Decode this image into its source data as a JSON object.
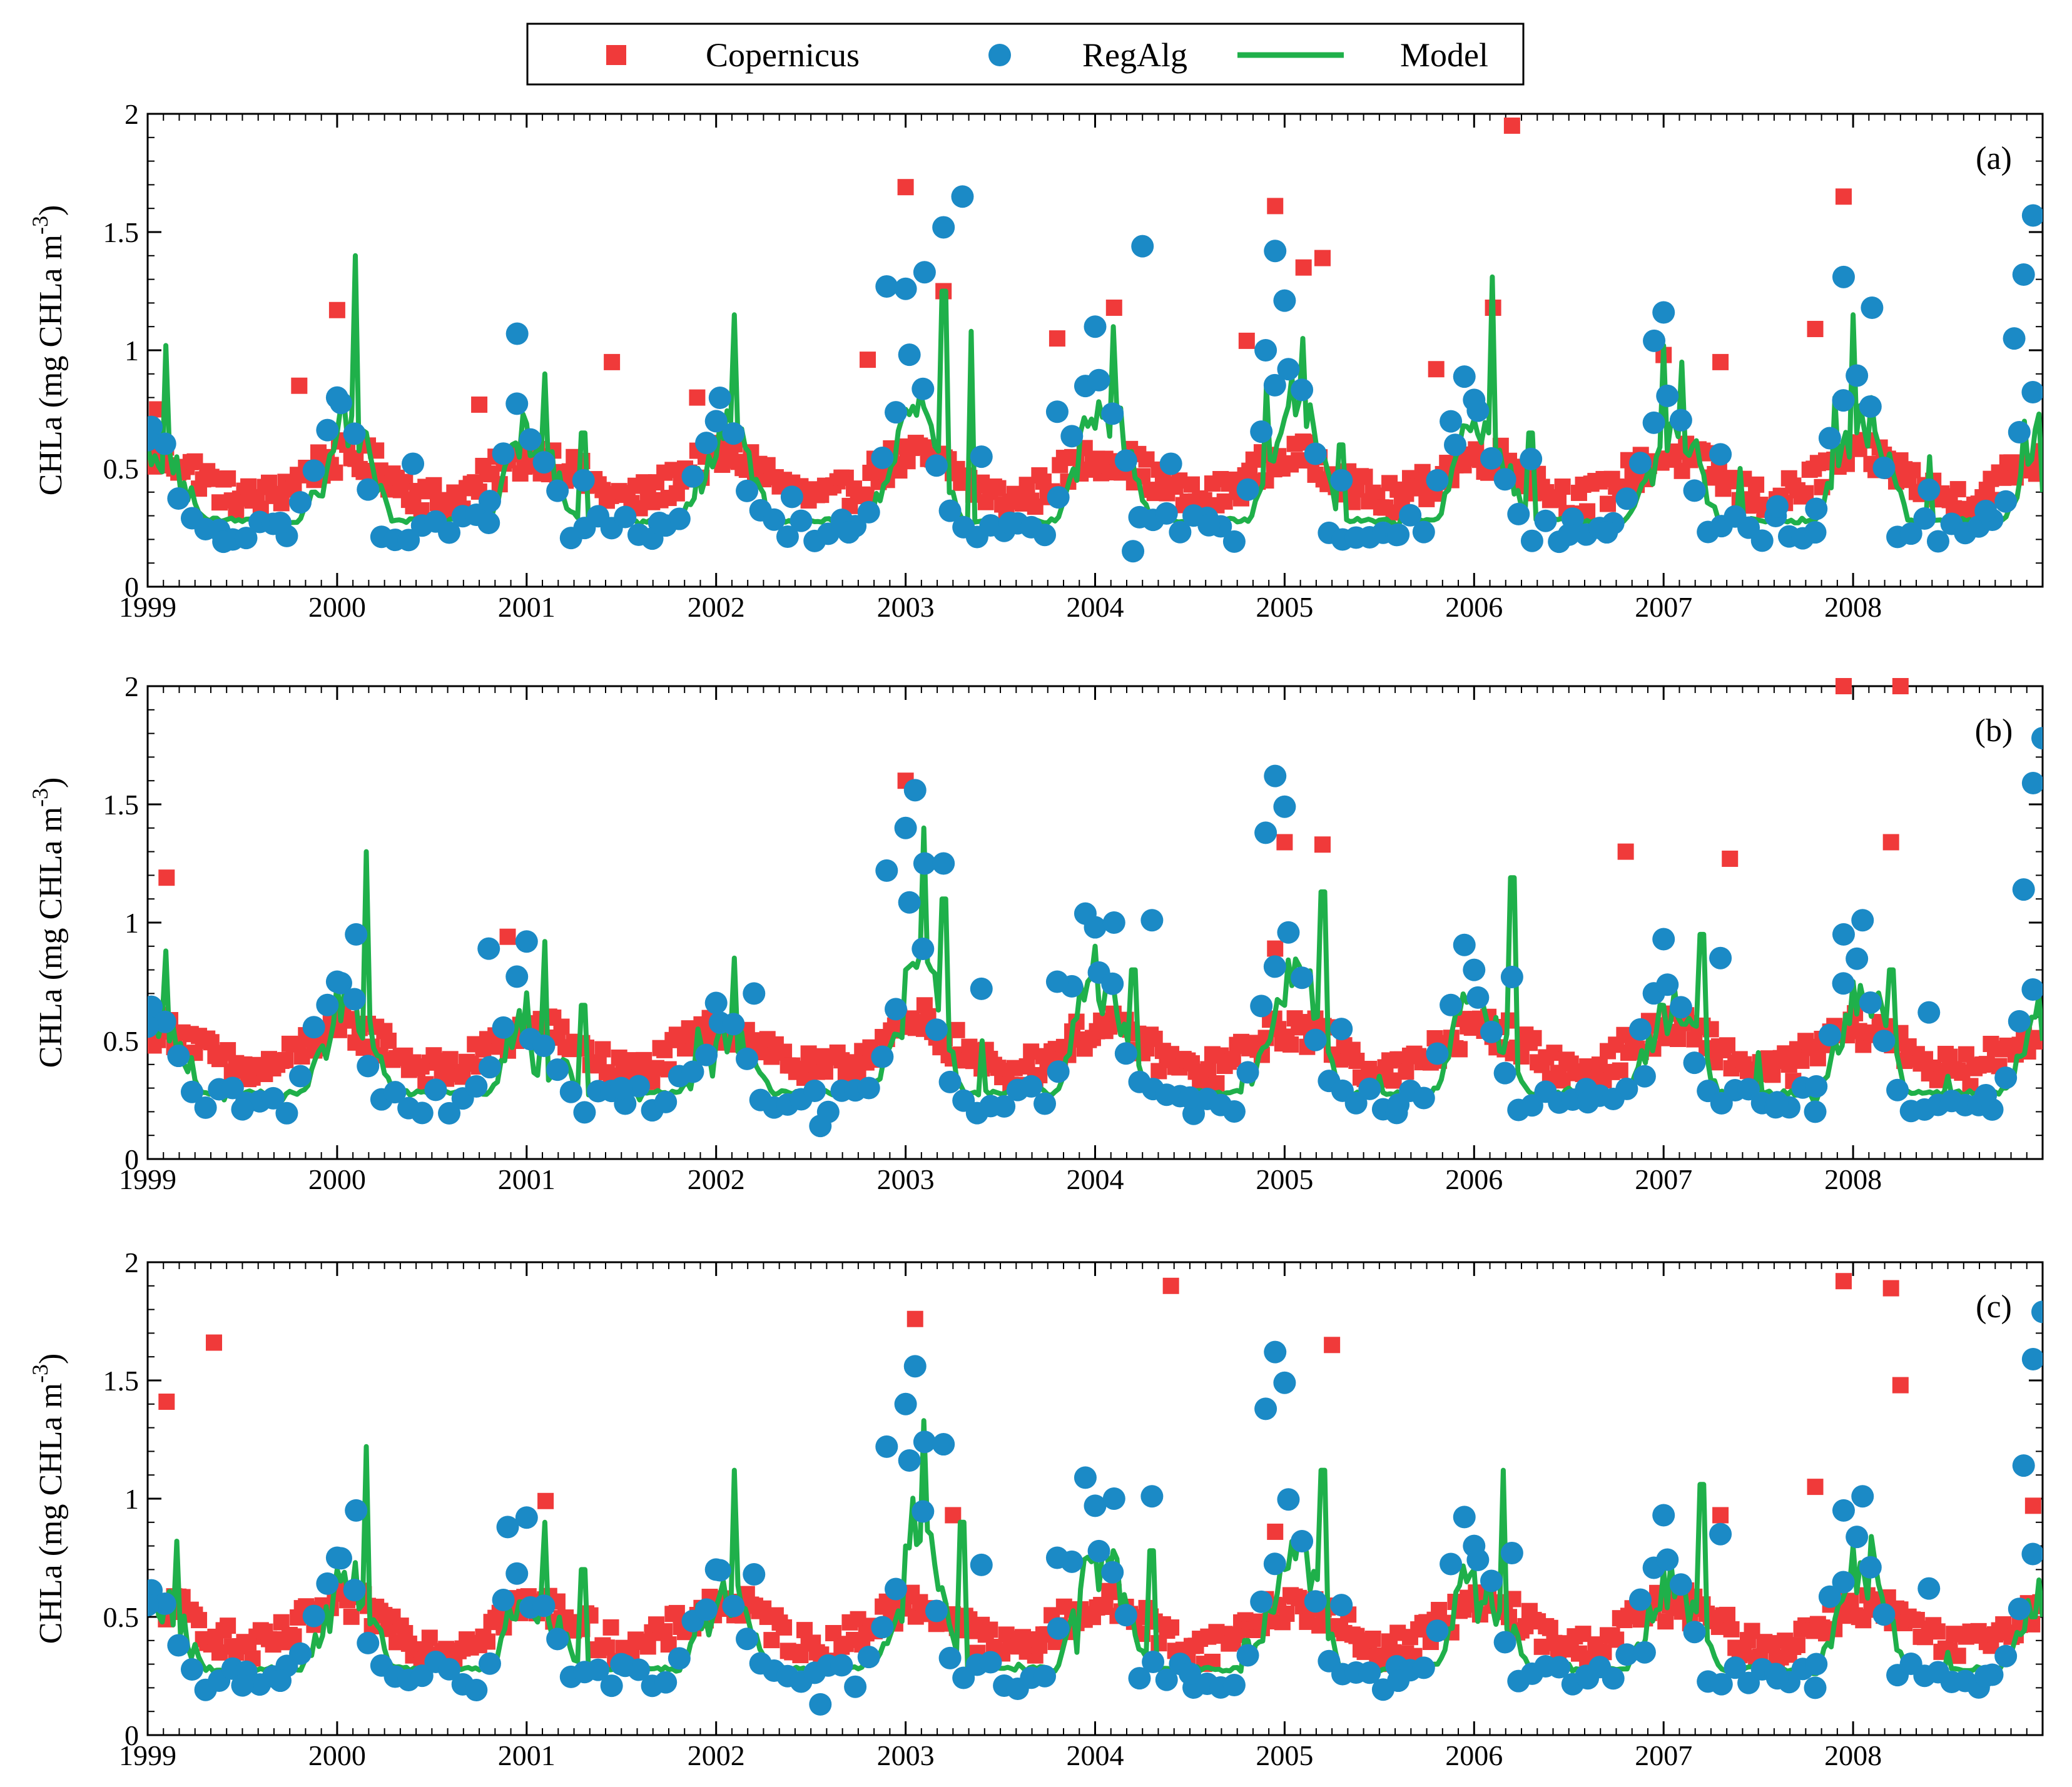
{
  "legend": {
    "items": [
      {
        "label": "Copernicus",
        "marker": "square",
        "color": "#f03a3a"
      },
      {
        "label": "RegAlg",
        "marker": "circle",
        "color": "#1b8ac6"
      },
      {
        "label": "Model",
        "marker": "line",
        "color": "#1fb04a"
      }
    ]
  },
  "chart_data": [
    {
      "type": "line",
      "panel_label": "(a)",
      "ylabel": "CHLa (mg CHLa m",
      "ylabel_superscript": "-3",
      "ylabel_close": ")",
      "xlim": [
        1999,
        2009
      ],
      "ylim": [
        0,
        2
      ],
      "xticks": [
        "1999",
        "2000",
        "2001",
        "2002",
        "2003",
        "2004",
        "2005",
        "2006",
        "2007",
        "2008"
      ],
      "yticks": [
        "0",
        "0.5",
        "1",
        "1.5",
        "2"
      ],
      "seasonal_peaks": [
        0.8,
        1.0,
        0.7,
        1.0,
        1.2,
        1.1,
        1.2,
        0.85,
        1.0,
        1.05
      ],
      "series": [
        {
          "name": "Copernicus",
          "x": [
            1999.05,
            1999.8,
            2000.0,
            2000.75,
            2001.45,
            2001.9,
            2002.8,
            2003.0,
            2003.2,
            2003.8,
            2004.1,
            2004.8,
            2004.95,
            2005.1,
            2005.2,
            2005.8,
            2006.1,
            2006.2,
            2007.0,
            2007.3,
            2007.8,
            2007.95
          ],
          "y": [
            0.75,
            0.85,
            1.17,
            0.77,
            0.95,
            0.8,
            0.96,
            1.69,
            1.25,
            1.05,
            1.18,
            1.04,
            1.61,
            1.35,
            1.39,
            0.92,
            1.18,
            1.95,
            0.98,
            0.95,
            1.09,
            1.65
          ]
        },
        {
          "name": "RegAlg",
          "x": [
            1999.0,
            1999.4,
            1999.7,
            2000.0,
            2000.4,
            2000.8,
            2000.95,
            2001.3,
            2001.7,
            2002.0,
            2002.4,
            2002.7,
            2002.9,
            2003.0,
            2003.1,
            2003.2,
            2003.3,
            2003.4,
            2003.55,
            2003.8,
            2004.0,
            2004.2,
            2004.25,
            2004.4,
            2004.6,
            2004.9,
            2004.95,
            2005.0,
            2005.3,
            2005.6,
            2005.9,
            2006.0,
            2006.3,
            2006.5,
            2006.7,
            2006.95,
            2007.0,
            2007.3,
            2007.6,
            2007.8,
            2007.95,
            2008.1,
            2008.4,
            2008.7,
            2008.85,
            2008.9,
            2008.95
          ],
          "y": [
            0.62,
            0.19,
            0.27,
            0.8,
            0.52,
            0.27,
            1.07,
            0.45,
            0.27,
            0.7,
            0.38,
            0.23,
            1.27,
            1.26,
            1.33,
            1.52,
            1.65,
            0.55,
            0.27,
            0.74,
            1.1,
            0.15,
            1.44,
            0.52,
            0.26,
            1.0,
            1.42,
            1.21,
            0.45,
            0.22,
            0.6,
            0.79,
            0.54,
            0.22,
            0.23,
            1.04,
            1.16,
            0.56,
            0.34,
            0.23,
            1.31,
            1.18,
            0.41,
            0.32,
            1.05,
            1.32,
            1.57
          ]
        },
        {
          "name": "Model",
          "x": [
            1999.0,
            1999.1,
            1999.4,
            1999.7,
            2000.0,
            2000.1,
            2000.5,
            2000.9,
            2001.1,
            2001.3,
            2001.6,
            2001.9,
            2002.1,
            2002.5,
            2002.8,
            2003.0,
            2003.2,
            2003.35,
            2003.6,
            2003.9,
            2004.1,
            2004.4,
            2004.6,
            2004.9,
            2005.1,
            2005.3,
            2005.6,
            2005.9,
            2006.1,
            2006.3,
            2006.6,
            2006.9,
            2007.0,
            2007.1,
            2007.4,
            2007.7,
            2007.9,
            2008.0,
            2008.1,
            2008.4,
            2008.7,
            2008.9,
            2009.0
          ],
          "y": [
            0.6,
            1.02,
            0.28,
            0.28,
            0.65,
            1.4,
            0.28,
            0.55,
            0.9,
            0.65,
            0.26,
            0.5,
            1.15,
            0.28,
            0.3,
            0.75,
            1.25,
            1.08,
            0.3,
            0.45,
            1.1,
            0.3,
            0.3,
            0.85,
            1.05,
            0.6,
            0.25,
            0.55,
            1.31,
            0.65,
            0.28,
            0.45,
            1.02,
            0.95,
            0.5,
            0.27,
            0.8,
            1.15,
            0.8,
            0.55,
            0.26,
            0.7,
            0.4
          ]
        }
      ]
    },
    {
      "type": "line",
      "panel_label": "(b)",
      "ylabel": "CHLa (mg CHLa m",
      "ylabel_superscript": "-3",
      "ylabel_close": ")",
      "xlim": [
        1999,
        2009
      ],
      "ylim": [
        0,
        2
      ],
      "xticks": [
        "1999",
        "2000",
        "2001",
        "2002",
        "2003",
        "2004",
        "2005",
        "2006",
        "2007",
        "2008"
      ],
      "yticks": [
        "0",
        "0.5",
        "1",
        "1.5",
        "2"
      ],
      "seasonal_peaks": [
        0.8,
        0.95,
        0.6,
        0.75,
        1.4,
        1.0,
        1.2,
        0.85,
        0.9,
        1.0
      ],
      "series": [
        {
          "name": "Copernicus",
          "x": [
            1999.1,
            2000.9,
            2003.0,
            2003.1,
            2004.95,
            2005.0,
            2005.2,
            2006.8,
            2007.35,
            2007.95,
            2008.2,
            2008.25
          ],
          "y": [
            1.19,
            0.94,
            1.6,
            0.65,
            0.89,
            1.34,
            1.33,
            1.3,
            1.27,
            2.0,
            1.34,
            2.0
          ]
        },
        {
          "name": "RegAlg",
          "x": [
            1999.0,
            1999.5,
            2000.0,
            2000.1,
            2000.8,
            2001.0,
            2001.5,
            2002.0,
            2002.2,
            2002.55,
            2002.9,
            2003.0,
            2003.05,
            2003.1,
            2003.2,
            2003.4,
            2003.8,
            2004.0,
            2004.1,
            2004.3,
            2004.5,
            2004.9,
            2004.95,
            2005.0,
            2005.3,
            2005.6,
            2006.0,
            2006.2,
            2006.6,
            2006.9,
            2007.0,
            2007.3,
            2007.6,
            2007.8,
            2007.95,
            2008.05,
            2008.4,
            2008.7,
            2008.9,
            2008.95,
            2009.0
          ],
          "y": [
            0.56,
            0.21,
            0.75,
            0.95,
            0.89,
            0.92,
            0.3,
            0.66,
            0.7,
            0.14,
            1.22,
            1.4,
            1.56,
            1.25,
            1.25,
            0.72,
            0.75,
            0.98,
            1.0,
            1.01,
            0.26,
            1.38,
            1.62,
            1.49,
            0.55,
            0.23,
            0.8,
            0.77,
            0.24,
            0.35,
            0.93,
            0.85,
            0.24,
            0.2,
            0.95,
            1.01,
            0.62,
            0.27,
            1.14,
            1.59,
            1.78
          ]
        },
        {
          "name": "Model",
          "x": [
            1999.0,
            1999.1,
            1999.4,
            1999.7,
            2000.0,
            2000.15,
            2000.5,
            2000.9,
            2001.1,
            2001.3,
            2001.6,
            2001.9,
            2002.1,
            2002.5,
            2002.8,
            2003.0,
            2003.1,
            2003.2,
            2003.4,
            2003.7,
            2004.0,
            2004.2,
            2004.5,
            2004.8,
            2005.0,
            2005.2,
            2005.5,
            2005.8,
            2006.0,
            2006.2,
            2006.5,
            2006.8,
            2007.0,
            2007.2,
            2007.5,
            2007.8,
            2008.0,
            2008.2,
            2008.5,
            2008.8,
            2008.95,
            2009.0
          ],
          "y": [
            0.65,
            0.88,
            0.25,
            0.25,
            0.75,
            1.3,
            0.3,
            0.55,
            0.92,
            0.65,
            0.25,
            0.55,
            0.85,
            0.26,
            0.3,
            0.8,
            1.4,
            1.1,
            0.5,
            0.3,
            0.9,
            0.8,
            0.25,
            0.4,
            0.65,
            1.13,
            0.35,
            0.3,
            0.7,
            1.19,
            0.3,
            0.3,
            0.65,
            0.95,
            0.45,
            0.25,
            0.75,
            0.8,
            0.35,
            0.3,
            0.6,
            0.5
          ]
        }
      ]
    },
    {
      "type": "line",
      "panel_label": "(c)",
      "ylabel": "CHLa (mg CHLa m",
      "ylabel_superscript": "-3",
      "ylabel_close": ")",
      "xlim": [
        1999,
        2009
      ],
      "ylim": [
        0,
        2
      ],
      "xticks": [
        "1999",
        "2000",
        "2001",
        "2002",
        "2003",
        "2004",
        "2005",
        "2006",
        "2007",
        "2008"
      ],
      "yticks": [
        "0",
        "0.5",
        "1",
        "1.5",
        "2"
      ],
      "seasonal_peaks": [
        0.8,
        0.95,
        0.7,
        0.8,
        1.4,
        1.0,
        1.2,
        0.85,
        0.9,
        1.0
      ],
      "series": [
        {
          "name": "Copernicus",
          "x": [
            1999.1,
            1999.35,
            2001.1,
            2003.05,
            2003.25,
            2004.4,
            2004.95,
            2005.25,
            2007.3,
            2007.8,
            2007.95,
            2008.2,
            2008.25,
            2008.95
          ],
          "y": [
            1.41,
            1.66,
            0.99,
            1.76,
            0.93,
            1.9,
            0.86,
            1.65,
            0.93,
            1.05,
            1.92,
            1.89,
            1.48,
            0.97
          ]
        },
        {
          "name": "RegAlg",
          "x": [
            1999.0,
            1999.5,
            1999.7,
            2000.0,
            2000.1,
            2000.9,
            2001.0,
            2001.5,
            2002.0,
            2002.2,
            2002.55,
            2002.9,
            2003.0,
            2003.05,
            2003.1,
            2003.2,
            2003.4,
            2003.8,
            2004.0,
            2004.1,
            2004.3,
            2004.5,
            2004.9,
            2004.95,
            2005.0,
            2005.3,
            2005.6,
            2006.0,
            2006.2,
            2006.6,
            2006.9,
            2007.0,
            2007.3,
            2007.6,
            2007.8,
            2007.95,
            2008.05,
            2008.4,
            2008.7,
            2008.9,
            2008.95,
            2009.0
          ],
          "y": [
            0.55,
            0.21,
            0.23,
            0.75,
            0.95,
            0.88,
            0.92,
            0.3,
            0.7,
            0.68,
            0.13,
            1.22,
            1.4,
            1.56,
            1.24,
            1.23,
            0.72,
            0.75,
            0.97,
            1.0,
            1.01,
            0.26,
            1.38,
            1.62,
            1.49,
            0.55,
            0.23,
            0.8,
            0.77,
            0.24,
            0.35,
            0.93,
            0.85,
            0.24,
            0.2,
            0.95,
            1.01,
            0.62,
            0.25,
            1.14,
            1.59,
            1.79
          ]
        },
        {
          "name": "Model",
          "x": [
            1999.0,
            1999.15,
            1999.4,
            1999.7,
            2000.0,
            2000.15,
            2000.5,
            2000.9,
            2001.1,
            2001.3,
            2001.6,
            2001.9,
            2002.1,
            2002.5,
            2002.8,
            2003.0,
            2003.1,
            2003.3,
            2003.6,
            2003.9,
            2004.1,
            2004.3,
            2004.5,
            2004.8,
            2005.0,
            2005.2,
            2005.5,
            2005.8,
            2006.0,
            2006.15,
            2006.5,
            2006.8,
            2007.0,
            2007.2,
            2007.5,
            2007.8,
            2008.0,
            2008.1,
            2008.5,
            2008.8,
            2008.95,
            2009.0
          ],
          "y": [
            0.6,
            0.82,
            0.25,
            0.25,
            0.7,
            1.22,
            0.28,
            0.55,
            0.9,
            0.7,
            0.25,
            0.55,
            1.12,
            0.26,
            0.32,
            0.8,
            1.33,
            0.9,
            0.3,
            0.35,
            0.78,
            0.78,
            0.25,
            0.4,
            0.7,
            1.12,
            0.27,
            0.3,
            0.7,
            1.12,
            0.3,
            0.28,
            0.7,
            1.06,
            0.3,
            0.26,
            0.8,
            0.84,
            0.35,
            0.3,
            0.5,
            0.5
          ]
        }
      ]
    }
  ]
}
